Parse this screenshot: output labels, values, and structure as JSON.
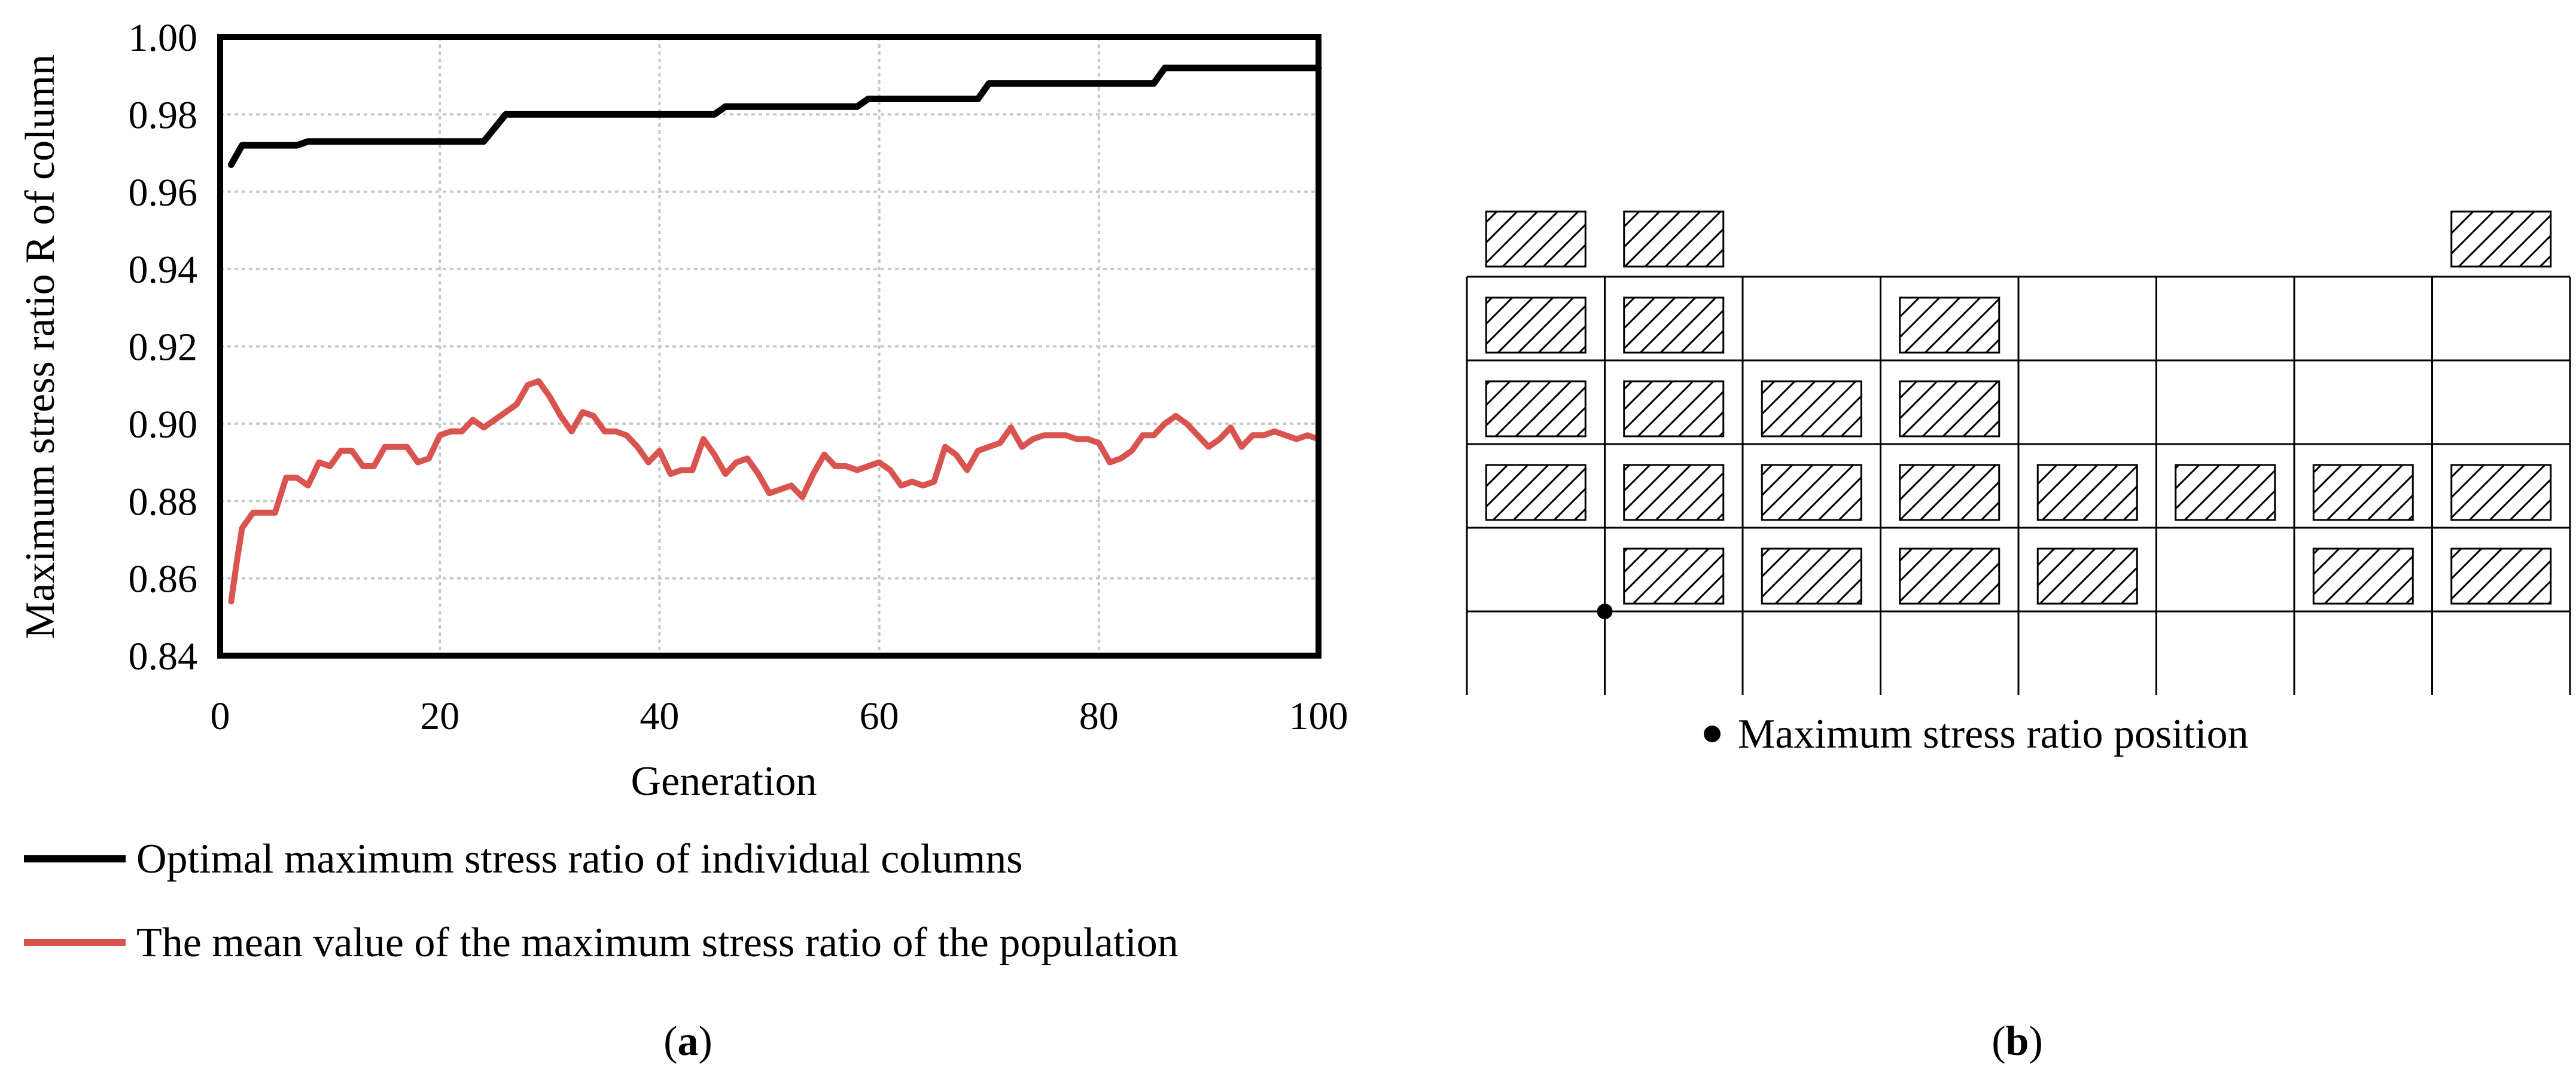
{
  "chart_data": [
    {
      "type": "line",
      "panel_label": "a",
      "xlabel": "Generation",
      "ylabel": "Maximum stress ratio R of column",
      "xlim": [
        0,
        100
      ],
      "ylim": [
        0.84,
        1.0
      ],
      "x_ticks": [
        0,
        20,
        40,
        60,
        80,
        100
      ],
      "y_ticks": [
        0.84,
        0.86,
        0.88,
        0.9,
        0.92,
        0.94,
        0.96,
        0.98,
        1.0
      ],
      "x_tick_labels": [
        "0",
        "20",
        "40",
        "60",
        "80",
        "100"
      ],
      "y_tick_labels": [
        "0.84",
        "0.86",
        "0.88",
        "0.90",
        "0.92",
        "0.94",
        "0.96",
        "0.98",
        "1.00"
      ],
      "grid": true,
      "legend": "bottom",
      "series": [
        {
          "name": "Optimal maximum stress ratio of individual columns",
          "color": "#000000",
          "points": [
            [
              1,
              0.967
            ],
            [
              2,
              0.972
            ],
            [
              7,
              0.972
            ],
            [
              8,
              0.973
            ],
            [
              24,
              0.973
            ],
            [
              26,
              0.98
            ],
            [
              45,
              0.98
            ],
            [
              46,
              0.982
            ],
            [
              58,
              0.982
            ],
            [
              59,
              0.984
            ],
            [
              69,
              0.984
            ],
            [
              70,
              0.988
            ],
            [
              85,
              0.988
            ],
            [
              86,
              0.992
            ],
            [
              100,
              0.992
            ]
          ]
        },
        {
          "name": "The mean value of the maximum stress ratio of the population",
          "color": "#d9534f",
          "points": [
            [
              1,
              0.854
            ],
            [
              1.5,
              0.864
            ],
            [
              2,
              0.873
            ],
            [
              3,
              0.877
            ],
            [
              4,
              0.877
            ],
            [
              5,
              0.877
            ],
            [
              6,
              0.886
            ],
            [
              7,
              0.886
            ],
            [
              8,
              0.884
            ],
            [
              9,
              0.89
            ],
            [
              10,
              0.889
            ],
            [
              11,
              0.893
            ],
            [
              12,
              0.893
            ],
            [
              13,
              0.889
            ],
            [
              14,
              0.889
            ],
            [
              15,
              0.894
            ],
            [
              16,
              0.894
            ],
            [
              17,
              0.894
            ],
            [
              18,
              0.89
            ],
            [
              19,
              0.891
            ],
            [
              20,
              0.897
            ],
            [
              21,
              0.898
            ],
            [
              22,
              0.898
            ],
            [
              23,
              0.901
            ],
            [
              24,
              0.899
            ],
            [
              25,
              0.901
            ],
            [
              26,
              0.903
            ],
            [
              27,
              0.905
            ],
            [
              28,
              0.91
            ],
            [
              29,
              0.911
            ],
            [
              30,
              0.907
            ],
            [
              31,
              0.902
            ],
            [
              32,
              0.898
            ],
            [
              33,
              0.903
            ],
            [
              34,
              0.902
            ],
            [
              35,
              0.898
            ],
            [
              36,
              0.898
            ],
            [
              37,
              0.897
            ],
            [
              38,
              0.894
            ],
            [
              39,
              0.89
            ],
            [
              40,
              0.893
            ],
            [
              41,
              0.887
            ],
            [
              42,
              0.888
            ],
            [
              43,
              0.888
            ],
            [
              44,
              0.896
            ],
            [
              45,
              0.892
            ],
            [
              46,
              0.887
            ],
            [
              47,
              0.89
            ],
            [
              48,
              0.891
            ],
            [
              49,
              0.887
            ],
            [
              50,
              0.882
            ],
            [
              51,
              0.883
            ],
            [
              52,
              0.884
            ],
            [
              53,
              0.881
            ],
            [
              54,
              0.887
            ],
            [
              55,
              0.892
            ],
            [
              56,
              0.889
            ],
            [
              57,
              0.889
            ],
            [
              58,
              0.888
            ],
            [
              59,
              0.889
            ],
            [
              60,
              0.89
            ],
            [
              61,
              0.888
            ],
            [
              62,
              0.884
            ],
            [
              63,
              0.885
            ],
            [
              64,
              0.884
            ],
            [
              65,
              0.885
            ],
            [
              66,
              0.894
            ],
            [
              67,
              0.892
            ],
            [
              68,
              0.888
            ],
            [
              69,
              0.893
            ],
            [
              70,
              0.894
            ],
            [
              71,
              0.895
            ],
            [
              72,
              0.899
            ],
            [
              73,
              0.894
            ],
            [
              74,
              0.896
            ],
            [
              75,
              0.897
            ],
            [
              76,
              0.897
            ],
            [
              77,
              0.897
            ],
            [
              78,
              0.896
            ],
            [
              79,
              0.896
            ],
            [
              80,
              0.895
            ],
            [
              81,
              0.89
            ],
            [
              82,
              0.891
            ],
            [
              83,
              0.893
            ],
            [
              84,
              0.897
            ],
            [
              85,
              0.897
            ],
            [
              86,
              0.9
            ],
            [
              87,
              0.902
            ],
            [
              88,
              0.9
            ],
            [
              89,
              0.897
            ],
            [
              90,
              0.894
            ],
            [
              91,
              0.896
            ],
            [
              92,
              0.899
            ],
            [
              93,
              0.894
            ],
            [
              94,
              0.897
            ],
            [
              95,
              0.897
            ],
            [
              96,
              0.898
            ],
            [
              97,
              0.897
            ],
            [
              98,
              0.896
            ],
            [
              99,
              0.897
            ],
            [
              100,
              0.896
            ]
          ]
        }
      ]
    },
    {
      "type": "diagram",
      "panel_label": "b",
      "legend_text": "Maximum stress ratio position",
      "columns": 8,
      "rows": 5,
      "grid_rows": [
        {
          "row": 0,
          "hatched_columns": [
            0,
            1,
            7
          ],
          "framed": false
        },
        {
          "row": 1,
          "hatched_columns": [
            0,
            1,
            3
          ],
          "framed": true
        },
        {
          "row": 2,
          "hatched_columns": [
            0,
            1,
            2,
            3
          ],
          "framed": true
        },
        {
          "row": 3,
          "hatched_columns": [
            0,
            1,
            2,
            3,
            4,
            5,
            6,
            7
          ],
          "framed": true
        },
        {
          "row": 4,
          "hatched_columns": [
            1,
            2,
            3,
            4,
            6,
            7
          ],
          "framed": true
        }
      ],
      "max_stress_marker": {
        "column_line": 1,
        "row_line": 5
      }
    }
  ],
  "captions": {
    "a": {
      "open": "(",
      "label": "a",
      "close": ")"
    },
    "b": {
      "open": "(",
      "label": "b",
      "close": ")"
    }
  }
}
